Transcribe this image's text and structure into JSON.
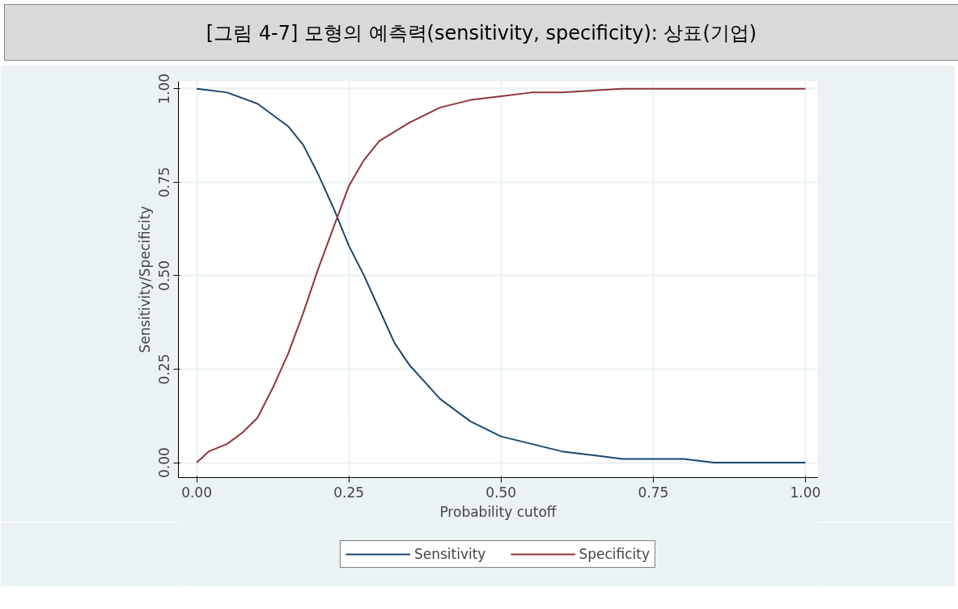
{
  "chart_data": {
    "type": "line",
    "title": "[그림 4-7] 모형의 예측력(sensitivity, specificity): 상표(기업)",
    "xlabel": "Probability cutoff",
    "ylabel": "Sensitivity/Specificity",
    "xlim": [
      -0.03,
      1.02
    ],
    "ylim": [
      -0.04,
      1.02
    ],
    "xticks": [
      {
        "value": 0,
        "label": "0.00"
      },
      {
        "value": 0.25,
        "label": "0.25"
      },
      {
        "value": 0.5,
        "label": "0.50"
      },
      {
        "value": 0.75,
        "label": "0.75"
      },
      {
        "value": 1,
        "label": "1.00"
      }
    ],
    "yticks": [
      {
        "value": 0,
        "label": "0.00"
      },
      {
        "value": 0.25,
        "label": "0.25"
      },
      {
        "value": 0.5,
        "label": "0.50"
      },
      {
        "value": 0.75,
        "label": "0.75"
      },
      {
        "value": 1,
        "label": "1.00"
      }
    ],
    "grid": true,
    "legend": "bottom",
    "marker": "none",
    "line_style": "solid",
    "series": [
      {
        "name": "Sensitivity",
        "color": "#1a476f",
        "x": [
          0,
          0.05,
          0.1,
          0.15,
          0.175,
          0.2,
          0.225,
          0.25,
          0.275,
          0.3,
          0.325,
          0.35,
          0.4,
          0.45,
          0.5,
          0.55,
          0.6,
          0.65,
          0.7,
          0.75,
          0.8,
          0.85,
          0.9,
          1.0
        ],
        "values": [
          1.0,
          0.99,
          0.96,
          0.9,
          0.85,
          0.77,
          0.68,
          0.58,
          0.5,
          0.41,
          0.32,
          0.26,
          0.17,
          0.11,
          0.07,
          0.05,
          0.03,
          0.02,
          0.01,
          0.01,
          0.01,
          0.0,
          0.0,
          0.0
        ]
      },
      {
        "name": "Specificity",
        "color": "#90353b",
        "x": [
          0,
          0.02,
          0.05,
          0.075,
          0.1,
          0.125,
          0.15,
          0.175,
          0.2,
          0.225,
          0.25,
          0.275,
          0.3,
          0.35,
          0.4,
          0.45,
          0.5,
          0.55,
          0.6,
          0.7,
          0.8,
          0.9,
          1.0
        ],
        "values": [
          0.0,
          0.03,
          0.05,
          0.08,
          0.12,
          0.2,
          0.29,
          0.4,
          0.52,
          0.63,
          0.74,
          0.81,
          0.86,
          0.91,
          0.95,
          0.97,
          0.98,
          0.99,
          0.99,
          1.0,
          1.0,
          1.0,
          1.0
        ]
      }
    ]
  }
}
